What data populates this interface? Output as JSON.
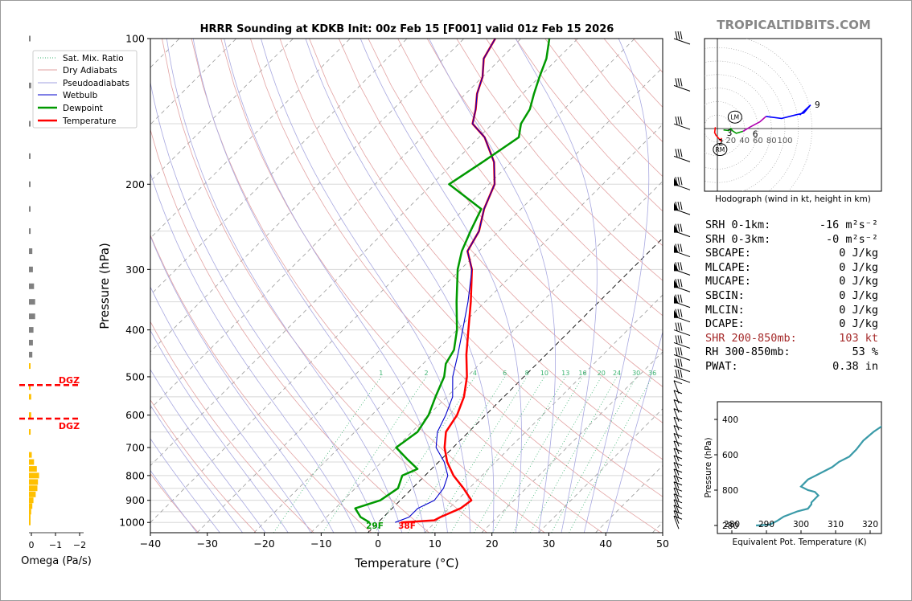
{
  "chart_data": [
    {
      "type": "line",
      "title": "HRRR Sounding at KDKB Init: 00z Feb 15 [F001] valid 01z Feb 15 2026",
      "xlabel": "Temperature (°C)",
      "ylabel": "Pressure (hPa)",
      "xlim": [
        -40,
        50
      ],
      "ylim": [
        1050,
        100
      ],
      "yscale": "log",
      "grid": true,
      "x_ticks": [
        "−40",
        "−30",
        "−20",
        "−10",
        "0",
        "10",
        "20",
        "30",
        "40",
        "50"
      ],
      "y_ticks": [
        "100",
        "200",
        "300",
        "400",
        "500",
        "600",
        "700",
        "800",
        "900",
        "1000"
      ],
      "legend_position": "top-left",
      "legend": [
        "Sat. Mix. Ratio",
        "Dry Adiabats",
        "Pseudoadiabats",
        "Wetbulb",
        "Dewpoint",
        "Temperature"
      ],
      "mixing_ratio_labels": [
        "1",
        "2",
        "4",
        "6",
        "8",
        "10",
        "13",
        "16",
        "20",
        "24",
        "30",
        "36"
      ],
      "surface_labels": {
        "dewpoint": "29F",
        "temperature": "38F"
      },
      "series": [
        {
          "name": "Temperature",
          "color": "#ff0000",
          "points": [
            [
              4.0,
              1000
            ],
            [
              9.5,
              990
            ],
            [
              10,
              975
            ],
            [
              12,
              935
            ],
            [
              12.5,
              900
            ],
            [
              9,
              850
            ],
            [
              5,
              800
            ],
            [
              1.5,
              750
            ],
            [
              -1.5,
              700
            ],
            [
              -4,
              650
            ],
            [
              -5,
              600
            ],
            [
              -7,
              550
            ],
            [
              -10,
              500
            ],
            [
              -14,
              450
            ],
            [
              -18,
              400
            ],
            [
              -22.5,
              350
            ],
            [
              -28,
              300
            ],
            [
              -32,
              275
            ],
            [
              -33.5,
              250
            ],
            [
              -36.5,
              225
            ],
            [
              -39,
              200
            ],
            [
              -43,
              180
            ],
            [
              -49,
              160
            ],
            [
              -53.5,
              150
            ],
            [
              -55.5,
              140
            ],
            [
              -58,
              130
            ],
            [
              -60,
              120
            ],
            [
              -63,
              110
            ],
            [
              -64.5,
              100
            ]
          ]
        },
        {
          "name": "Wetbulb",
          "color": "#0000cc",
          "points": [
            [
              3.0,
              1000
            ],
            [
              4.5,
              975
            ],
            [
              4.5,
              935
            ],
            [
              6,
              900
            ],
            [
              5.5,
              850
            ],
            [
              4,
              800
            ],
            [
              1,
              750
            ],
            [
              -3,
              700
            ],
            [
              -5.5,
              650
            ],
            [
              -7,
              600
            ],
            [
              -9,
              550
            ],
            [
              -12.5,
              500
            ],
            [
              -15.5,
              450
            ],
            [
              -19,
              400
            ],
            [
              -23,
              350
            ],
            [
              -28,
              300
            ],
            [
              -32,
              275
            ],
            [
              -33.5,
              250
            ],
            [
              -36.5,
              225
            ],
            [
              -39,
              200
            ],
            [
              -43,
              180
            ],
            [
              -49,
              160
            ],
            [
              -53.5,
              150
            ],
            [
              -55.5,
              140
            ],
            [
              -58,
              130
            ],
            [
              -60,
              120
            ],
            [
              -63,
              110
            ],
            [
              -64.5,
              100
            ]
          ]
        },
        {
          "name": "Dewpoint",
          "color": "#009900",
          "points": [
            [
              -1.5,
              1000
            ],
            [
              -4,
              975
            ],
            [
              -6.5,
              935
            ],
            [
              -3.5,
              900
            ],
            [
              -2.5,
              850
            ],
            [
              -4,
              800
            ],
            [
              -2.5,
              775
            ],
            [
              -6,
              740
            ],
            [
              -10,
              700
            ],
            [
              -9,
              650
            ],
            [
              -10,
              600
            ],
            [
              -12,
              550
            ],
            [
              -14,
              500
            ],
            [
              -16,
              470
            ],
            [
              -17,
              440
            ],
            [
              -20,
              400
            ],
            [
              -25,
              350
            ],
            [
              -30.5,
              300
            ],
            [
              -33,
              275
            ],
            [
              -35,
              250
            ],
            [
              -37,
              225
            ],
            [
              -47,
              200
            ],
            [
              -45,
              180
            ],
            [
              -43,
              160
            ],
            [
              -45,
              150
            ],
            [
              -46,
              140
            ],
            [
              -48,
              130
            ],
            [
              -50,
              120
            ],
            [
              -52,
              110
            ],
            [
              -55,
              100
            ]
          ]
        }
      ]
    },
    {
      "type": "line",
      "title": "",
      "xlabel": "Omega (Pa/s)",
      "x_ticks": [
        "0",
        "−1",
        "−2"
      ],
      "dgz_label": "DGZ",
      "series": [
        {
          "name": "",
          "color": "#808080",
          "points": [
            [
              0.1,
              100
            ],
            [
              0.2,
              125
            ],
            [
              0.15,
              150
            ],
            [
              0.1,
              175
            ],
            [
              0.1,
              200
            ],
            [
              0.1,
              225
            ],
            [
              0.15,
              250
            ],
            [
              0.3,
              275
            ],
            [
              0.35,
              300
            ],
            [
              0.45,
              325
            ],
            [
              0.55,
              350
            ],
            [
              0.55,
              375
            ],
            [
              0.4,
              400
            ],
            [
              0.35,
              425
            ],
            [
              0.3,
              450
            ]
          ]
        },
        {
          "name": "",
          "color": "#ffc000",
          "points": [
            [
              0.05,
              475
            ],
            [
              0.1,
              525
            ],
            [
              0.2,
              550
            ],
            [
              0.2,
              600
            ],
            [
              0.15,
              650
            ],
            [
              0.25,
              725
            ],
            [
              0.45,
              750
            ],
            [
              0.7,
              775
            ],
            [
              0.9,
              800
            ],
            [
              0.8,
              825
            ],
            [
              0.75,
              850
            ],
            [
              0.6,
              875
            ],
            [
              0.4,
              900
            ],
            [
              0.3,
              925
            ],
            [
              0.2,
              950
            ],
            [
              0.1,
              975
            ],
            [
              0.05,
              1000
            ]
          ]
        }
      ]
    },
    {
      "type": "line",
      "title": "",
      "xlabel": "Hodograph (wind in kt, height in km)",
      "ring_labels": [
        "20",
        "40",
        "60",
        "80",
        "100"
      ],
      "height_labels": [
        "2",
        "3",
        "6",
        "9"
      ],
      "markers": [
        "LM",
        "RM"
      ],
      "series": [
        {
          "name": "",
          "color": "#ff0000",
          "points": [
            [
              -3,
              2
            ],
            [
              -4,
              -6
            ],
            [
              -2,
              -10
            ],
            [
              5,
              -18
            ],
            [
              6,
              -14
            ]
          ]
        },
        {
          "name": "",
          "color": "#009900",
          "points": [
            [
              9,
              -2
            ],
            [
              17,
              -3
            ],
            [
              20,
              0
            ],
            [
              22,
              -3
            ],
            [
              28,
              -7
            ],
            [
              38,
              -4
            ]
          ]
        },
        {
          "name": "",
          "color": "#b000b0",
          "points": [
            [
              38,
              -4
            ],
            [
              48,
              2
            ],
            [
              63,
              10
            ],
            [
              72,
              18
            ]
          ]
        },
        {
          "name": "",
          "color": "#0000ff",
          "points": [
            [
              72,
              18
            ],
            [
              95,
              15
            ],
            [
              115,
              20
            ],
            [
              128,
              23
            ],
            [
              138,
              35
            ],
            [
              122,
              20
            ]
          ]
        }
      ]
    },
    {
      "type": "line",
      "title": "",
      "xlabel": "Equivalent Pot. Temperature (K)",
      "ylabel": "Pressure (hPa)",
      "x_ticks": [
        "280",
        "290",
        "300",
        "310",
        "320"
      ],
      "y_ticks": [
        "400",
        "600",
        "800",
        "280"
      ],
      "series": [
        {
          "name": "",
          "color": "#3a9aa8",
          "points": [
            [
              287,
              1000
            ],
            [
              291,
              995
            ],
            [
              293,
              975
            ],
            [
              295,
              950
            ],
            [
              299,
              920
            ],
            [
              302,
              905
            ],
            [
              303,
              880
            ],
            [
              303,
              870
            ],
            [
              305,
              830
            ],
            [
              304,
              810
            ],
            [
              302,
              800
            ],
            [
              300,
              780
            ],
            [
              302,
              740
            ],
            [
              306,
              700
            ],
            [
              309,
              670
            ],
            [
              311,
              640
            ],
            [
              314,
              610
            ],
            [
              316,
              570
            ],
            [
              318,
              520
            ],
            [
              321,
              470
            ],
            [
              324,
              430
            ],
            [
              327,
              400
            ],
            [
              328,
              380
            ]
          ]
        }
      ]
    }
  ],
  "brand": "TROPICALTIDBITS.COM",
  "stats": [
    {
      "label": "SRH 0-1km:",
      "value": "-16 m²s⁻²",
      "highlight": false
    },
    {
      "label": "SRH 0-3km:",
      "value": "-0 m²s⁻²",
      "highlight": false
    },
    {
      "label": "SBCAPE:",
      "value": "0 J/kg",
      "highlight": false
    },
    {
      "label": "MLCAPE:",
      "value": "0 J/kg",
      "highlight": false
    },
    {
      "label": "MUCAPE:",
      "value": "0 J/kg",
      "highlight": false
    },
    {
      "label": "SBCIN:",
      "value": "0 J/kg",
      "highlight": false
    },
    {
      "label": "MLCIN:",
      "value": "0 J/kg",
      "highlight": false
    },
    {
      "label": "DCAPE:",
      "value": "0 J/kg",
      "highlight": false
    },
    {
      "label": "SHR 200-850mb:",
      "value": "103 kt",
      "highlight": true
    },
    {
      "label": "RH 300-850mb:",
      "value": "53 %",
      "highlight": false
    },
    {
      "label": "PWAT:",
      "value": "0.38 in",
      "highlight": false
    }
  ]
}
